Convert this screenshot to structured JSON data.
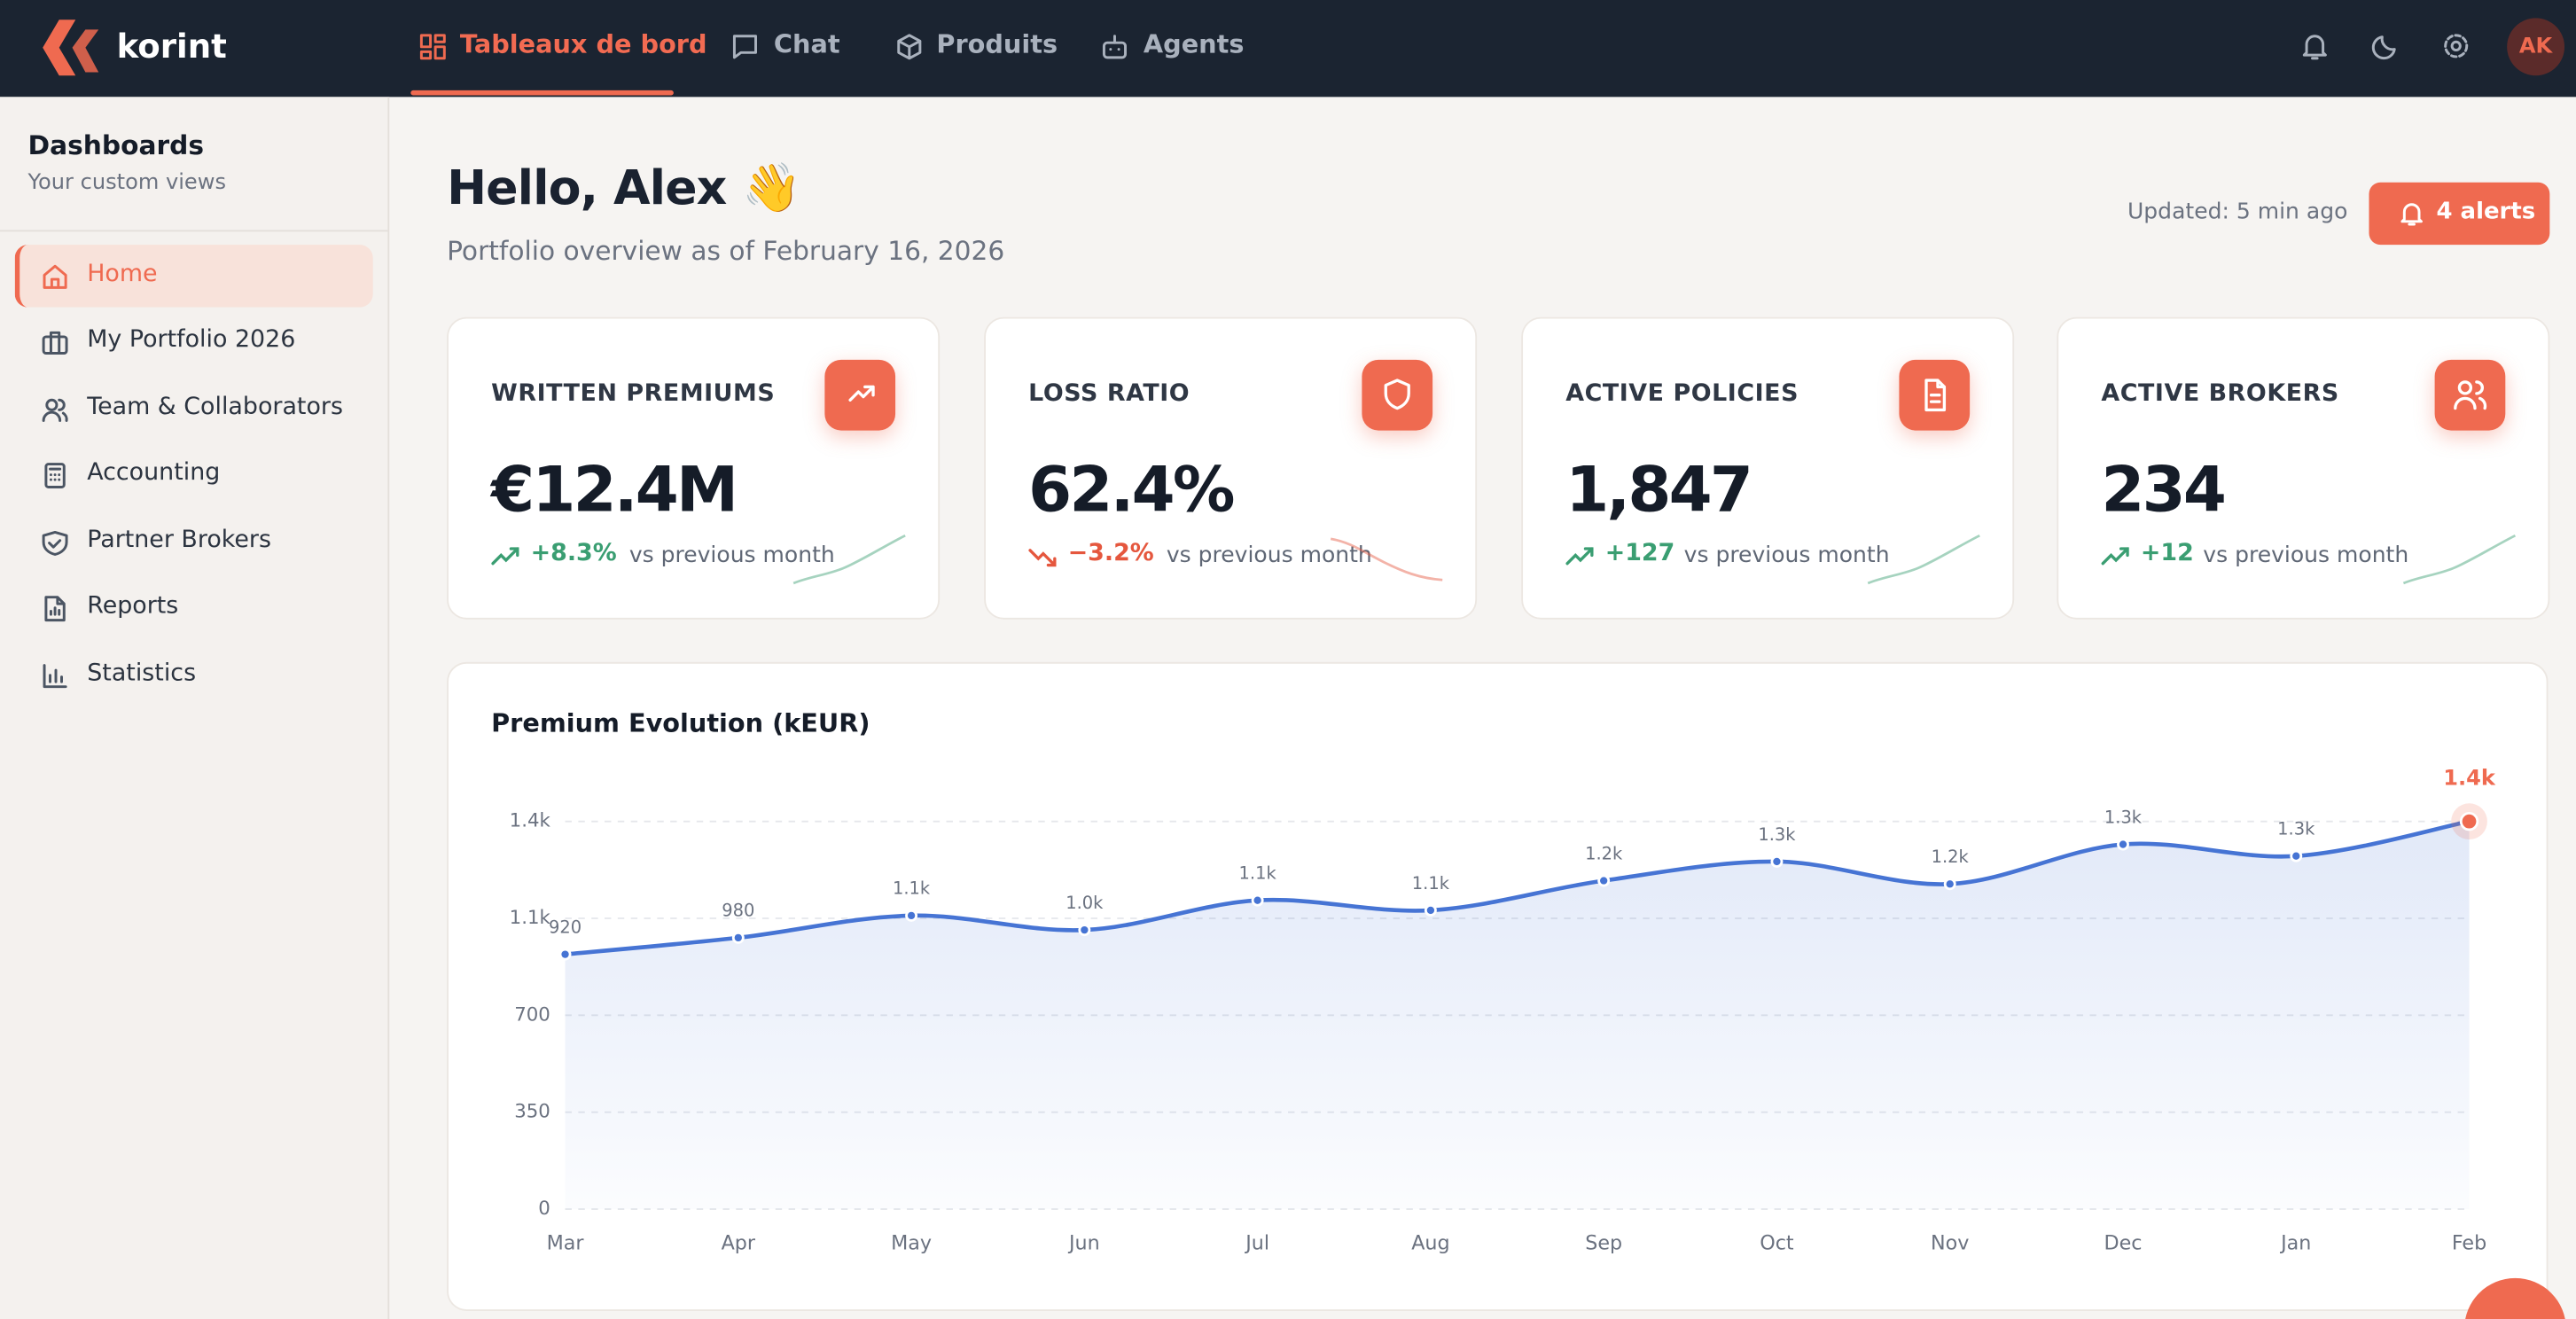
{
  "brand": "korint",
  "nav": [
    "Tableaux de bord",
    "Chat",
    "Produits",
    "Agents"
  ],
  "avatar": "AK",
  "sidebar": {
    "title": "Dashboards",
    "subtitle": "Your custom views",
    "items": [
      "Home",
      "My Portfolio 2026",
      "Team & Collaborators",
      "Accounting",
      "Partner Brokers",
      "Reports",
      "Statistics"
    ]
  },
  "header": {
    "greeting": "Hello, Alex 👋",
    "subtitle": "Portfolio overview as of February 16, 2026",
    "updated": "Updated: 5 min ago",
    "alerts": "4 alerts"
  },
  "kpis": [
    {
      "label": "WRITTEN PREMIUMS",
      "value": "€12.4M",
      "change": "+8.3%",
      "note": "vs previous month"
    },
    {
      "label": "LOSS RATIO",
      "value": "62.4%",
      "change": "−3.2%",
      "note": "vs previous month"
    },
    {
      "label": "ACTIVE POLICIES",
      "value": "1,847",
      "change": "+127",
      "note": "vs previous month"
    },
    {
      "label": "ACTIVE BROKERS",
      "value": "234",
      "change": "+12",
      "note": "vs previous month"
    }
  ],
  "chart_data": {
    "type": "line",
    "title": "Premium Evolution (kEUR)",
    "categories": [
      "Mar",
      "Apr",
      "May",
      "Jun",
      "Jul",
      "Aug",
      "Sep",
      "Oct",
      "Nov",
      "Dec",
      "Jan",
      "Feb"
    ],
    "values": [
      920,
      980,
      1060,
      1008,
      1115,
      1079,
      1186,
      1255,
      1174,
      1317,
      1275,
      1400
    ],
    "value_labels": [
      "920",
      "980",
      "1.1k",
      "1.0k",
      "1.1k",
      "1.1k",
      "1.2k",
      "1.3k",
      "1.2k",
      "1.3k",
      "1.3k",
      "1.4k"
    ],
    "color": "#4674d4",
    "highlight_color": "#ef6a50",
    "ylim": [
      0,
      1400
    ],
    "yticks": [
      0,
      350,
      700,
      {
        "value": 1050,
        "label": "1.1k"
      },
      {
        "value": 1400,
        "label": "1.4k"
      }
    ],
    "grid": true
  }
}
